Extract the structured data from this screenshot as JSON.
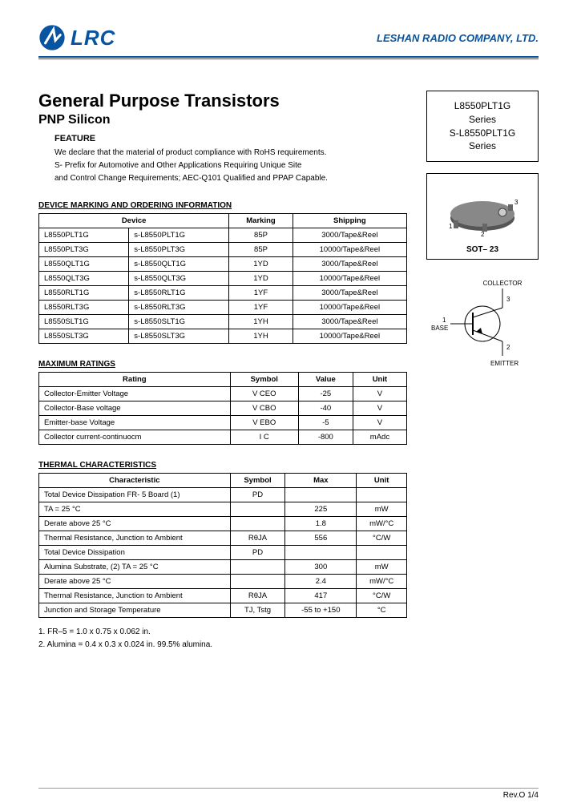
{
  "header": {
    "logo_text": "LRC",
    "company": "LESHAN RADIO COMPANY, LTD.",
    "logo_color": "#0854a0"
  },
  "title": "General Purpose Transistors",
  "subtitle": "PNP Silicon",
  "feature": {
    "heading": "FEATURE",
    "line1": "We declare that the material of product compliance with RoHS requirements.",
    "line2": "S- Prefix for Automotive and Other Applications Requiring Unique Site",
    "line3": "and Control Change Requirements; AEC-Q101 Qualified and PPAP Capable."
  },
  "part_box": {
    "l1": "L8550PLT1G",
    "l2": "Series",
    "l3": "S-L8550PLT1G",
    "l4": "Series"
  },
  "package": {
    "label": "SOT– 23",
    "pin1": "1",
    "pin2": "2",
    "pin3": "3"
  },
  "pinout": {
    "collector": "COLLECTOR",
    "base": "BASE",
    "emitter": "EMITTER",
    "p1": "1",
    "p2": "2",
    "p3": "3"
  },
  "devtable": {
    "heading": "DEVICE MARKING AND ORDERING INFORMATION",
    "headers": [
      "Device",
      "Marking",
      "Shipping"
    ],
    "colspan_device": 2,
    "rows": [
      [
        "L8550PLT1G",
        "s-L8550PLT1G",
        "85P",
        "3000/Tape&Reel"
      ],
      [
        "L8550PLT3G",
        "s-L8550PLT3G",
        "85P",
        "10000/Tape&Reel"
      ],
      [
        "L8550QLT1G",
        "s-L8550QLT1G",
        "1YD",
        "3000/Tape&Reel"
      ],
      [
        "L8550QLT3G",
        "s-L8550QLT3G",
        "1YD",
        "10000/Tape&Reel"
      ],
      [
        "L8550RLT1G",
        "s-L8550RLT1G",
        "1YF",
        "3000/Tape&Reel"
      ],
      [
        "L8550RLT3G",
        "s-L8550RLT3G",
        "1YF",
        "10000/Tape&Reel"
      ],
      [
        "L8550SLT1G",
        "s-L8550SLT1G",
        "1YH",
        "3000/Tape&Reel"
      ],
      [
        "L8550SLT3G",
        "s-L8550SLT3G",
        "1YH",
        "10000/Tape&Reel"
      ]
    ]
  },
  "ratings": {
    "heading": "MAXIMUM RATINGS",
    "headers": [
      "Rating",
      "Symbol",
      "Value",
      "Unit"
    ],
    "rows": [
      [
        "Collector-Emitter Voltage",
        "V CEO",
        "-25",
        "V"
      ],
      [
        "Collector-Base voltage",
        "V CBO",
        "-40",
        "V"
      ],
      [
        "Emitter-base Voltage",
        "V EBO",
        "-5",
        "V"
      ],
      [
        "Collector current-continuocm",
        "I C",
        "-800",
        "mAdc"
      ]
    ]
  },
  "thermal": {
    "heading": "THERMAL CHARACTERISTICS",
    "headers": [
      "Characteristic",
      "Symbol",
      "Max",
      "Unit"
    ],
    "rows": [
      [
        "Total Device Dissipation FR- 5 Board (1)",
        "PD",
        "",
        ""
      ],
      [
        "TA = 25 °C",
        "",
        "225",
        "mW"
      ],
      [
        "Derate above 25 °C",
        "",
        "1.8",
        "mW/°C"
      ],
      [
        "Thermal Resistance, Junction to Ambient",
        "RθJA",
        "556",
        "°C/W"
      ],
      [
        "Total Device Dissipation",
        "PD",
        "",
        ""
      ],
      [
        "Alumina Substrate, (2) TA = 25 °C",
        "",
        "300",
        "mW"
      ],
      [
        "Derate above 25 °C",
        "",
        "2.4",
        "mW/°C"
      ],
      [
        "Thermal Resistance, Junction to Ambient",
        "RθJA",
        "417",
        "°C/W"
      ],
      [
        "Junction and Storage Temperature",
        "TJ, Tstg",
        "-55 to +150",
        "°C"
      ]
    ]
  },
  "notes": {
    "n1": "1. FR–5 = 1.0 x 0.75 x 0.062 in.",
    "n2": "2. Alumina = 0.4 x 0.3 x 0.024 in. 99.5% alumina."
  },
  "footer": {
    "rev": "Rev.O  1/4"
  }
}
